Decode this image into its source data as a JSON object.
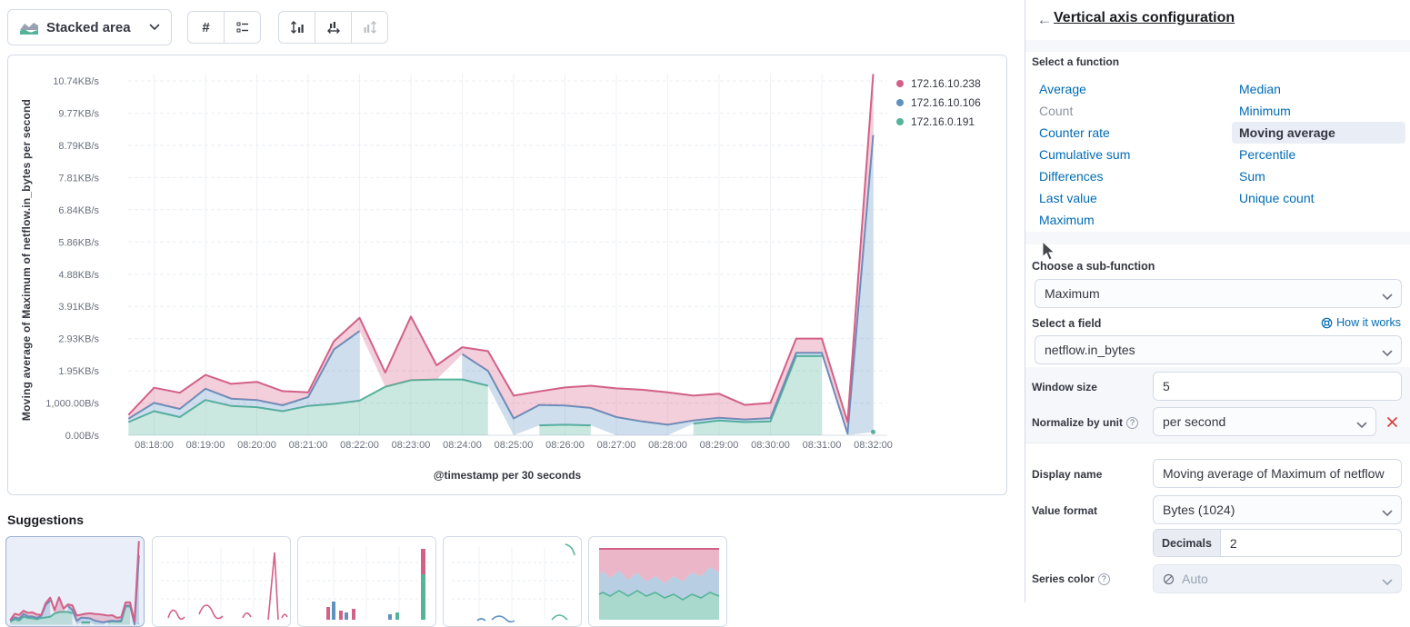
{
  "toolbar": {
    "chart_type_label": "Stacked area",
    "values_button_label": "#",
    "icons": {
      "chart_type": "stacked-area-icon",
      "dropdown": "chevron-down-icon",
      "labels": "list-icon",
      "axis_left": "axis-left-icon",
      "axis_bottom": "axis-bottom-icon",
      "axis_right": "axis-right-icon"
    }
  },
  "chart": {
    "y_axis_title": "Moving average of Maximum of netflow.in_bytes per second",
    "x_axis_title": "@timestamp per 30 seconds"
  },
  "chart_data": {
    "type": "area",
    "stacked": true,
    "xlabel": "@timestamp per 30 seconds",
    "ylabel": "Moving average of Maximum of netflow.in_bytes per second",
    "unit": "KB/s",
    "ylim": [
      0,
      11.2
    ],
    "grid": true,
    "legend_position": "top-right",
    "x": [
      "08:17:30",
      "08:18:00",
      "08:18:30",
      "08:19:00",
      "08:19:30",
      "08:20:00",
      "08:20:30",
      "08:21:00",
      "08:21:30",
      "08:22:00",
      "08:22:30",
      "08:23:00",
      "08:23:30",
      "08:24:00",
      "08:24:30",
      "08:25:00",
      "08:25:30",
      "08:26:00",
      "08:26:30",
      "08:27:00",
      "08:27:30",
      "08:28:00",
      "08:28:30",
      "08:29:00",
      "08:29:30",
      "08:30:00",
      "08:30:30",
      "08:31:00",
      "08:31:30",
      "08:32:00"
    ],
    "series": [
      {
        "name": "172.16.0.191",
        "color": "#54B399",
        "values": [
          0.4,
          0.73,
          0.55,
          1.07,
          0.89,
          0.85,
          0.73,
          0.89,
          0.95,
          1.05,
          1.47,
          1.67,
          1.69,
          1.69,
          1.5,
          null,
          0.3,
          0.32,
          0.3,
          null,
          null,
          null,
          0.35,
          0.45,
          0.4,
          0.42,
          2.4,
          2.4,
          null,
          0.1
        ]
      },
      {
        "name": "172.16.10.106",
        "color": "#6092C0",
        "values": [
          0.1,
          0.25,
          0.25,
          0.34,
          0.22,
          0.22,
          0.18,
          0.27,
          1.65,
          2.11,
          null,
          null,
          null,
          0.77,
          0.45,
          0.51,
          0.62,
          0.58,
          0.53,
          0.55,
          0.42,
          0.32,
          0.1,
          0.08,
          0.08,
          0.1,
          0.1,
          0.1,
          0.05,
          9.0
        ]
      },
      {
        "name": "172.16.10.238",
        "color": "#D36086",
        "values": [
          0.12,
          0.46,
          0.49,
          0.42,
          0.45,
          0.55,
          0.43,
          0.14,
          0.25,
          0.4,
          0.43,
          1.93,
          0.43,
          0.21,
          0.6,
          0.69,
          0.41,
          0.55,
          0.67,
          0.87,
          0.96,
          0.98,
          0.75,
          0.73,
          0.44,
          0.46,
          0.43,
          0.43,
          0.35,
          1.85
        ]
      }
    ],
    "legend": [
      "172.16.10.238",
      "172.16.10.106",
      "172.16.0.191"
    ],
    "y_ticks": [
      "0.00B/s",
      "1,000.00B/s",
      "1.95KB/s",
      "2.93KB/s",
      "3.91KB/s",
      "4.88KB/s",
      "5.86KB/s",
      "6.84KB/s",
      "7.81KB/s",
      "8.79KB/s",
      "9.77KB/s",
      "10.74KB/s"
    ],
    "x_ticks": [
      "08:18:00",
      "08:19:00",
      "08:20:00",
      "08:21:00",
      "08:22:00",
      "08:23:00",
      "08:24:00",
      "08:25:00",
      "08:26:00",
      "08:27:00",
      "08:28:00",
      "08:29:00",
      "08:30:00",
      "08:31:00",
      "08:32:00"
    ]
  },
  "suggestions": {
    "heading": "Suggestions"
  },
  "panel": {
    "title": "Vertical axis configuration",
    "select_function_label": "Select a function",
    "functions": {
      "left": [
        "Average",
        "Count",
        "Counter rate",
        "Cumulative sum",
        "Differences",
        "Last value",
        "Maximum"
      ],
      "right": [
        "Median",
        "Minimum",
        "Moving average",
        "Percentile",
        "Sum",
        "Unique count"
      ],
      "selected": "Moving average",
      "disabled": "Count"
    },
    "sub_function": {
      "label": "Choose a sub-function",
      "value": "Maximum"
    },
    "field": {
      "label": "Select a field",
      "help_link": "How it works",
      "value": "netflow.in_bytes"
    },
    "window_size": {
      "label": "Window size",
      "value": "5"
    },
    "normalize": {
      "label": "Normalize by unit",
      "value": "per second"
    },
    "display_name": {
      "label": "Display name",
      "value": "Moving average of Maximum of netflow"
    },
    "value_format": {
      "label": "Value format",
      "value": "Bytes (1024)"
    },
    "decimals": {
      "label": "Decimals",
      "value": "2"
    },
    "series_color": {
      "label": "Series color",
      "value": "Auto"
    }
  },
  "colors": {
    "link": "#006BB4",
    "series_pink": "#D36086",
    "series_blue": "#6092C0",
    "series_green": "#54B399",
    "danger": "#D64541",
    "selected_item_bg": "#E9EDF6"
  }
}
